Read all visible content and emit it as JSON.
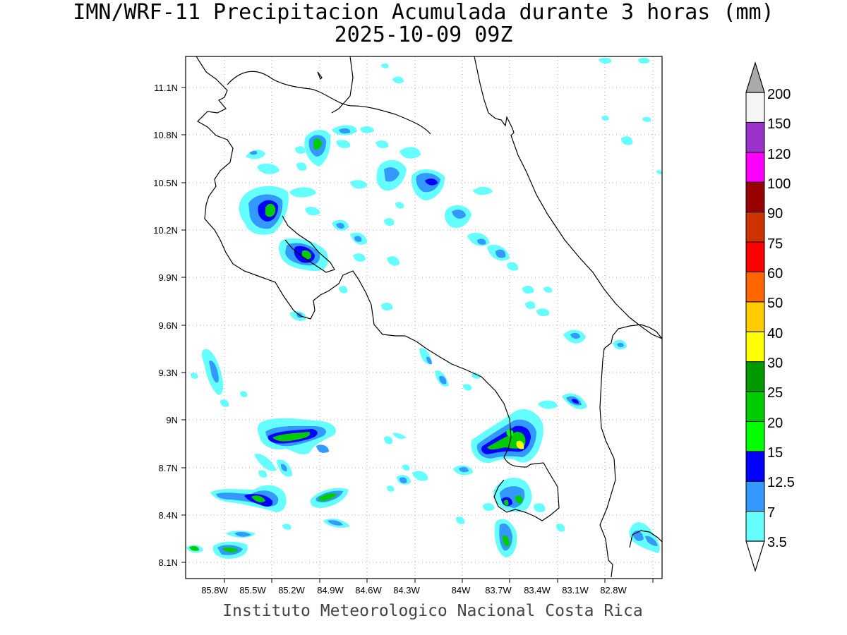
{
  "title": {
    "line1": "IMN/WRF-11 Precipitacion Acumulada durante 3 horas (mm)",
    "line2": "2025-10-09 09Z"
  },
  "credit": "Instituto Meteorologico Nacional Costa Rica",
  "map": {
    "lon_range": [
      -86.05,
      -82.45
    ],
    "lat_range": [
      8.0,
      11.3
    ],
    "lon_ticks": [
      "85.8W",
      "85.5W",
      "85.2W",
      "84.9W",
      "84.6W",
      "84.3W",
      "84W",
      "83.7W",
      "83.4W",
      "83.1W",
      "82.8W"
    ],
    "lat_ticks": [
      "11.1N",
      "10.8N",
      "10.5N",
      "10.2N",
      "9.9N",
      "9.6N",
      "9.3N",
      "9N",
      "8.7N",
      "8.4N",
      "8.1N"
    ],
    "grid": "dotted",
    "coastline_color": "#000000"
  },
  "legend": {
    "unit": "mm",
    "labels": [
      "3.5",
      "7",
      "12.5",
      "15",
      "20",
      "25",
      "30",
      "40",
      "50",
      "60",
      "75",
      "90",
      "100",
      "120",
      "150",
      "200"
    ],
    "colors": [
      "#66ffff",
      "#3399ff",
      "#0000ff",
      "#00ff00",
      "#00cc00",
      "#009900",
      "#ffff00",
      "#ffcc00",
      "#ff6600",
      "#ff0000",
      "#cc3300",
      "#990000",
      "#ff00ff",
      "#9933cc",
      "#f5f5f5",
      "#aaaaaa"
    ]
  }
}
